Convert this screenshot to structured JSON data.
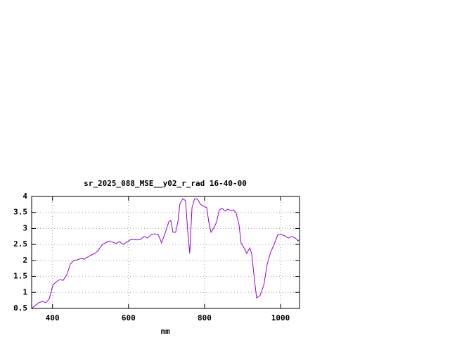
{
  "chart_data": {
    "type": "line",
    "title": "sr_2025_088_MSE__y02_r_rad 16-40-00",
    "x_label": "nm",
    "x": [
      345,
      364,
      373,
      382,
      391,
      401,
      410,
      419,
      428,
      438,
      447,
      456,
      465,
      475,
      484,
      493,
      502,
      512,
      521,
      530,
      539,
      549,
      558,
      567,
      576,
      586,
      595,
      604,
      613,
      623,
      632,
      641,
      650,
      660,
      669,
      678,
      687,
      697,
      706,
      711,
      717,
      724,
      730,
      735,
      743,
      750,
      756,
      761,
      767,
      774,
      782,
      789,
      798,
      806,
      811,
      817,
      826,
      832,
      839,
      846,
      854,
      861,
      869,
      876,
      883,
      891,
      896,
      904,
      911,
      919,
      924,
      932,
      937,
      946,
      956,
      965,
      974,
      983,
      993,
      1002,
      1011,
      1020,
      1030,
      1039,
      1046,
      1050
    ],
    "values": [
      0.5,
      0.68,
      0.72,
      0.68,
      0.79,
      1.23,
      1.34,
      1.4,
      1.38,
      1.56,
      1.89,
      2.0,
      2.02,
      2.06,
      2.04,
      2.11,
      2.17,
      2.22,
      2.33,
      2.48,
      2.55,
      2.61,
      2.57,
      2.53,
      2.59,
      2.5,
      2.57,
      2.64,
      2.66,
      2.64,
      2.66,
      2.75,
      2.7,
      2.81,
      2.83,
      2.81,
      2.55,
      2.88,
      3.21,
      3.25,
      2.88,
      2.88,
      3.21,
      3.76,
      3.93,
      3.87,
      2.88,
      2.22,
      3.65,
      3.93,
      3.91,
      3.76,
      3.69,
      3.65,
      3.21,
      2.88,
      3.05,
      3.21,
      3.58,
      3.63,
      3.54,
      3.6,
      3.56,
      3.58,
      3.49,
      3.1,
      2.55,
      2.39,
      2.22,
      2.39,
      2.22,
      1.34,
      0.83,
      0.9,
      1.23,
      1.89,
      2.26,
      2.5,
      2.81,
      2.81,
      2.77,
      2.7,
      2.75,
      2.7,
      2.61,
      2.66
    ],
    "color": "#9400d3",
    "xlim": [
      345,
      1050
    ],
    "xticks": [
      400,
      600,
      800,
      1000
    ],
    "ylim": [
      0.5,
      4
    ],
    "yticks": [
      0.5,
      1,
      1.5,
      2,
      2.5,
      3,
      3.5,
      4
    ],
    "grid": true
  }
}
